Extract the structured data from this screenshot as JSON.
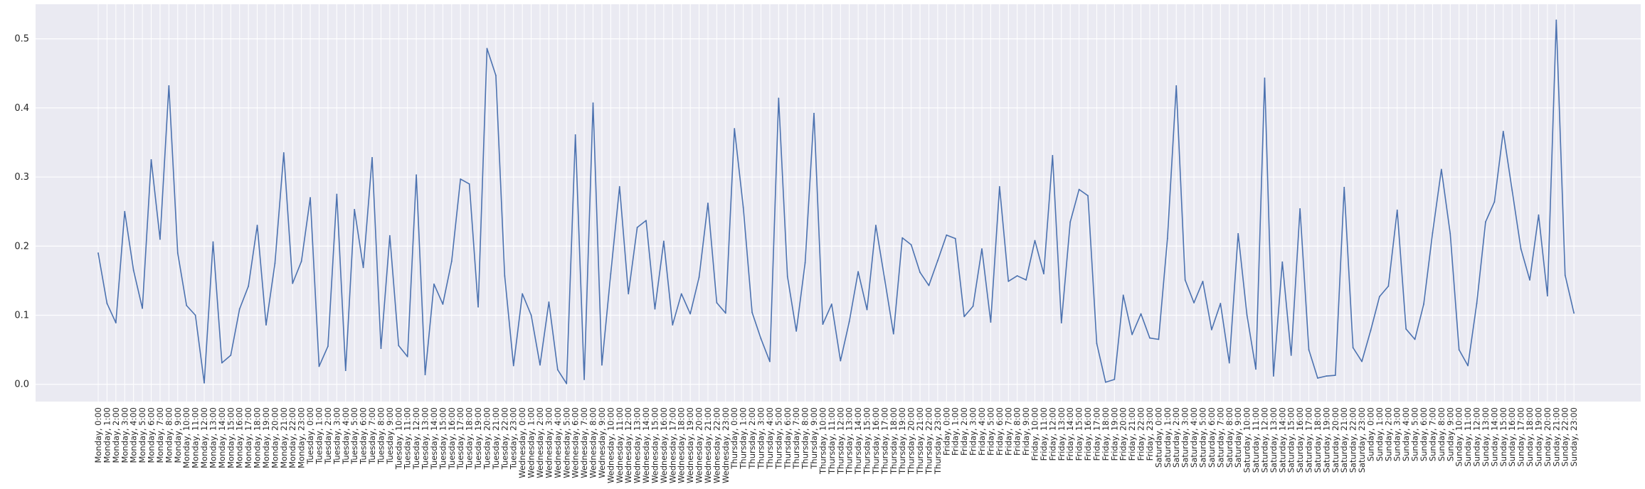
{
  "chart_data": {
    "type": "line",
    "title": "",
    "xlabel": "",
    "ylabel": "",
    "ylim": [
      -0.025,
      0.55
    ],
    "yticks": [
      0.0,
      0.1,
      0.2,
      0.3,
      0.4,
      0.5
    ],
    "ytick_labels": [
      "0.0",
      "0.1",
      "0.2",
      "0.3",
      "0.4",
      "0.5"
    ],
    "grid": true,
    "legend": "none",
    "colors": {
      "background": "#eaeaf2",
      "grid": "#ffffff",
      "line": "#4c72b0"
    },
    "x": [
      "Monday, 0:00",
      "Monday, 1:00",
      "Monday, 2:00",
      "Monday, 3:00",
      "Monday, 4:00",
      "Monday, 5:00",
      "Monday, 6:00",
      "Monday, 7:00",
      "Monday, 8:00",
      "Monday, 9:00",
      "Monday, 10:00",
      "Monday, 11:00",
      "Monday, 12:00",
      "Monday, 13:00",
      "Monday, 14:00",
      "Monday, 15:00",
      "Monday, 16:00",
      "Monday, 17:00",
      "Monday, 18:00",
      "Monday, 19:00",
      "Monday, 20:00",
      "Monday, 21:00",
      "Monday, 22:00",
      "Monday, 23:00",
      "Tuesday, 0:00",
      "Tuesday, 1:00",
      "Tuesday, 2:00",
      "Tuesday, 3:00",
      "Tuesday, 4:00",
      "Tuesday, 5:00",
      "Tuesday, 6:00",
      "Tuesday, 7:00",
      "Tuesday, 8:00",
      "Tuesday, 9:00",
      "Tuesday, 10:00",
      "Tuesday, 11:00",
      "Tuesday, 12:00",
      "Tuesday, 13:00",
      "Tuesday, 14:00",
      "Tuesday, 15:00",
      "Tuesday, 16:00",
      "Tuesday, 17:00",
      "Tuesday, 18:00",
      "Tuesday, 19:00",
      "Tuesday, 20:00",
      "Tuesday, 21:00",
      "Tuesday, 22:00",
      "Tuesday, 23:00",
      "Wednesday, 0:00",
      "Wednesday, 1:00",
      "Wednesday, 2:00",
      "Wednesday, 3:00",
      "Wednesday, 4:00",
      "Wednesday, 5:00",
      "Wednesday, 6:00",
      "Wednesday, 7:00",
      "Wednesday, 8:00",
      "Wednesday, 9:00",
      "Wednesday, 10:00",
      "Wednesday, 11:00",
      "Wednesday, 12:00",
      "Wednesday, 13:00",
      "Wednesday, 14:00",
      "Wednesday, 15:00",
      "Wednesday, 16:00",
      "Wednesday, 17:00",
      "Wednesday, 18:00",
      "Wednesday, 19:00",
      "Wednesday, 20:00",
      "Wednesday, 21:00",
      "Wednesday, 22:00",
      "Wednesday, 23:00",
      "Thursday, 0:00",
      "Thursday, 1:00",
      "Thursday, 2:00",
      "Thursday, 3:00",
      "Thursday, 4:00",
      "Thursday, 5:00",
      "Thursday, 6:00",
      "Thursday, 7:00",
      "Thursday, 8:00",
      "Thursday, 9:00",
      "Thursday, 10:00",
      "Thursday, 11:00",
      "Thursday, 12:00",
      "Thursday, 13:00",
      "Thursday, 14:00",
      "Thursday, 15:00",
      "Thursday, 16:00",
      "Thursday, 17:00",
      "Thursday, 18:00",
      "Thursday, 19:00",
      "Thursday, 20:00",
      "Thursday, 21:00",
      "Thursday, 22:00",
      "Thursday, 23:00",
      "Friday, 0:00",
      "Friday, 1:00",
      "Friday, 2:00",
      "Friday, 3:00",
      "Friday, 4:00",
      "Friday, 5:00",
      "Friday, 6:00",
      "Friday, 7:00",
      "Friday, 8:00",
      "Friday, 9:00",
      "Friday, 10:00",
      "Friday, 11:00",
      "Friday, 12:00",
      "Friday, 13:00",
      "Friday, 14:00",
      "Friday, 15:00",
      "Friday, 16:00",
      "Friday, 17:00",
      "Friday, 18:00",
      "Friday, 19:00",
      "Friday, 20:00",
      "Friday, 21:00",
      "Friday, 22:00",
      "Friday, 23:00",
      "Saturday, 0:00",
      "Saturday, 1:00",
      "Saturday, 2:00",
      "Saturday, 3:00",
      "Saturday, 4:00",
      "Saturday, 5:00",
      "Saturday, 6:00",
      "Saturday, 7:00",
      "Saturday, 8:00",
      "Saturday, 9:00",
      "Saturday, 10:00",
      "Saturday, 11:00",
      "Saturday, 12:00",
      "Saturday, 13:00",
      "Saturday, 14:00",
      "Saturday, 15:00",
      "Saturday, 16:00",
      "Saturday, 17:00",
      "Saturday, 18:00",
      "Saturday, 19:00",
      "Saturday, 20:00",
      "Saturday, 21:00",
      "Saturday, 22:00",
      "Saturday, 23:00",
      "Sunday, 0:00",
      "Sunday, 1:00",
      "Sunday, 2:00",
      "Sunday, 3:00",
      "Sunday, 4:00",
      "Sunday, 5:00",
      "Sunday, 6:00",
      "Sunday, 7:00",
      "Sunday, 8:00",
      "Sunday, 9:00",
      "Sunday, 10:00",
      "Sunday, 11:00",
      "Sunday, 12:00",
      "Sunday, 13:00",
      "Sunday, 14:00",
      "Sunday, 15:00",
      "Sunday, 16:00",
      "Sunday, 17:00",
      "Sunday, 18:00",
      "Sunday, 19:00",
      "Sunday, 20:00",
      "Sunday, 21:00",
      "Sunday, 22:00",
      "Sunday, 23:00"
    ],
    "series": [
      {
        "values": [
          0.19,
          0.117,
          0.089,
          0.25,
          0.165,
          0.11,
          0.325,
          0.21,
          0.432,
          0.19,
          0.114,
          0.1,
          0.002,
          0.206,
          0.031,
          0.042,
          0.109,
          0.142,
          0.23,
          0.086,
          0.175,
          0.335,
          0.146,
          0.178,
          0.27,
          0.026,
          0.055,
          0.275,
          0.02,
          0.253,
          0.169,
          0.328,
          0.052,
          0.215,
          0.056,
          0.04,
          0.303,
          0.014,
          0.145,
          0.116,
          0.178,
          0.297,
          0.29,
          0.112,
          0.486,
          0.447,
          0.157,
          0.027,
          0.131,
          0.1,
          0.028,
          0.119,
          0.021,
          0.001,
          0.361,
          0.007,
          0.407,
          0.028,
          0.16,
          0.286,
          0.131,
          0.227,
          0.237,
          0.109,
          0.207,
          0.086,
          0.131,
          0.102,
          0.155,
          0.262,
          0.118,
          0.103,
          0.37,
          0.256,
          0.104,
          0.066,
          0.033,
          0.414,
          0.156,
          0.077,
          0.176,
          0.392,
          0.087,
          0.116,
          0.034,
          0.091,
          0.163,
          0.108,
          0.23,
          0.152,
          0.073,
          0.212,
          0.202,
          0.162,
          0.143,
          0.179,
          0.216,
          0.211,
          0.098,
          0.113,
          0.196,
          0.09,
          0.286,
          0.149,
          0.157,
          0.151,
          0.208,
          0.16,
          0.331,
          0.089,
          0.235,
          0.282,
          0.273,
          0.059,
          0.003,
          0.007,
          0.129,
          0.072,
          0.102,
          0.067,
          0.065,
          0.211,
          0.432,
          0.151,
          0.118,
          0.149,
          0.079,
          0.117,
          0.031,
          0.218,
          0.1,
          0.022,
          0.443,
          0.012,
          0.177,
          0.042,
          0.254,
          0.05,
          0.009,
          0.012,
          0.013,
          0.285,
          0.053,
          0.033,
          0.078,
          0.127,
          0.142,
          0.252,
          0.08,
          0.065,
          0.116,
          0.219,
          0.311,
          0.218,
          0.05,
          0.027,
          0.117,
          0.235,
          0.264,
          0.366,
          0.281,
          0.196,
          0.151,
          0.245,
          0.128,
          0.527,
          0.158,
          0.103
        ]
      }
    ]
  }
}
